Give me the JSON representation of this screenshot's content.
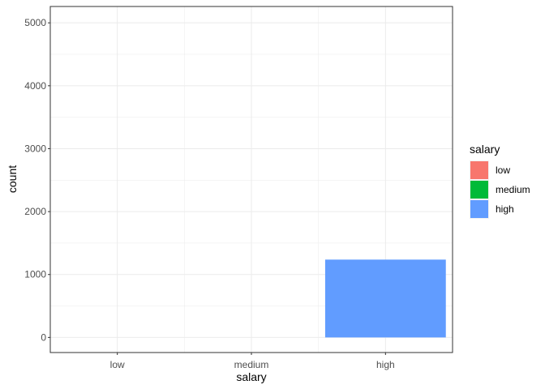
{
  "chart_data": {
    "type": "bar",
    "categories": [
      "low",
      "medium",
      "high"
    ],
    "values": [
      0,
      0,
      1237
    ],
    "xlabel": "salary",
    "ylabel": "count",
    "ylim": [
      -240,
      5260
    ],
    "y_ticks": [
      0,
      1000,
      2000,
      3000,
      4000,
      5000
    ],
    "grid": true,
    "legend": {
      "title": "salary",
      "placement": "right",
      "entries": [
        {
          "label": "low",
          "color": "#F8766D"
        },
        {
          "label": "medium",
          "color": "#00BA38"
        },
        {
          "label": "high",
          "color": "#619CFF"
        }
      ]
    }
  }
}
